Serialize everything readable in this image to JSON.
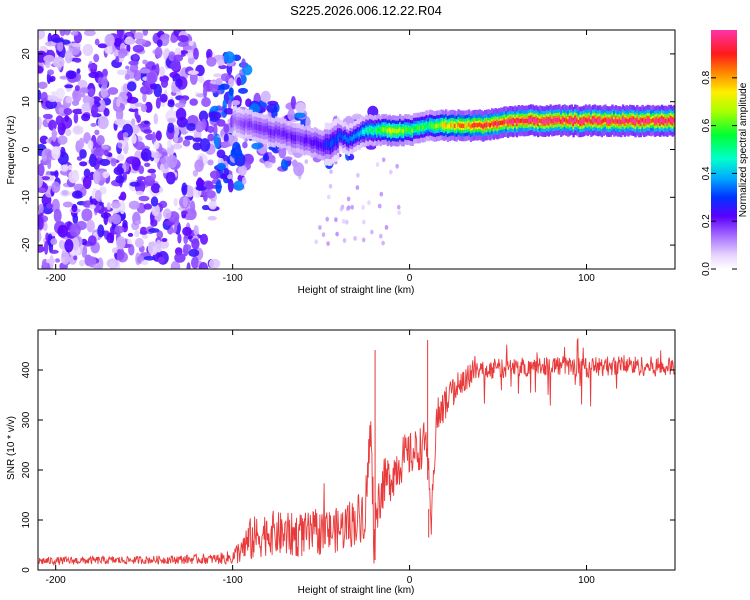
{
  "title": "S225.2026.006.12.22.R04",
  "chart_data": [
    {
      "type": "heatmap",
      "name": "spectrogram",
      "xlabel": "Height of straight line (km)",
      "ylabel": "Frequency (Hz)",
      "xlim": [
        -210,
        150
      ],
      "ylim": [
        -25,
        25
      ],
      "xticks": [
        -200,
        -100,
        0,
        100
      ],
      "yticks": [
        -20,
        -10,
        0,
        10,
        20
      ],
      "colorbar": {
        "label": "Normalized spectral amplitude",
        "range": [
          0,
          1
        ],
        "ticks": [
          0.0,
          0.2,
          0.4,
          0.6,
          0.8
        ]
      },
      "ridge": {
        "x": [
          -100,
          -90,
          -80,
          -70,
          -60,
          -50,
          -45,
          -40,
          -35,
          -30,
          -25,
          -20,
          -10,
          0,
          10,
          20,
          40,
          60,
          80,
          100,
          120,
          150
        ],
        "frequency_hz": [
          6,
          5,
          4,
          3,
          2,
          1,
          1,
          3,
          2,
          3,
          4,
          4,
          4,
          4,
          5,
          5,
          5,
          6,
          6,
          6,
          6,
          6
        ],
        "amplitude": [
          0.15,
          0.18,
          0.2,
          0.2,
          0.2,
          0.25,
          0.3,
          0.3,
          0.35,
          0.4,
          0.45,
          0.55,
          0.7,
          0.6,
          0.55,
          0.75,
          0.9,
          0.95,
          0.95,
          0.98,
          0.95,
          0.95
        ]
      },
      "noise_region_x": [
        -210,
        -100
      ]
    },
    {
      "type": "line",
      "name": "snr",
      "xlabel": "Height of straight line (km)",
      "ylabel": "SNR (10 * v/v)",
      "xlim": [
        -210,
        150
      ],
      "ylim": [
        0,
        480
      ],
      "xticks": [
        -200,
        -100,
        0,
        100
      ],
      "yticks": [
        0,
        100,
        200,
        300,
        400
      ],
      "color": "#e83a3a",
      "x": [
        -210,
        -150,
        -110,
        -100,
        -90,
        -80,
        -70,
        -60,
        -50,
        -40,
        -35,
        -30,
        -25,
        -22,
        -20,
        -19,
        -15,
        -10,
        -5,
        0,
        5,
        10,
        12,
        15,
        20,
        25,
        30,
        40,
        60,
        80,
        100,
        120,
        150
      ],
      "values": [
        18,
        20,
        22,
        25,
        60,
        75,
        70,
        70,
        75,
        80,
        90,
        100,
        120,
        280,
        40,
        120,
        170,
        190,
        220,
        230,
        240,
        260,
        65,
        300,
        330,
        360,
        380,
        400,
        405,
        410,
        405,
        410,
        405
      ],
      "noise_amplitude": [
        8,
        8,
        10,
        15,
        45,
        45,
        45,
        45,
        45,
        45,
        50,
        50,
        60,
        60,
        40,
        50,
        50,
        50,
        50,
        45,
        45,
        45,
        40,
        40,
        35,
        30,
        25,
        20,
        20,
        20,
        20,
        20,
        20
      ]
    }
  ]
}
